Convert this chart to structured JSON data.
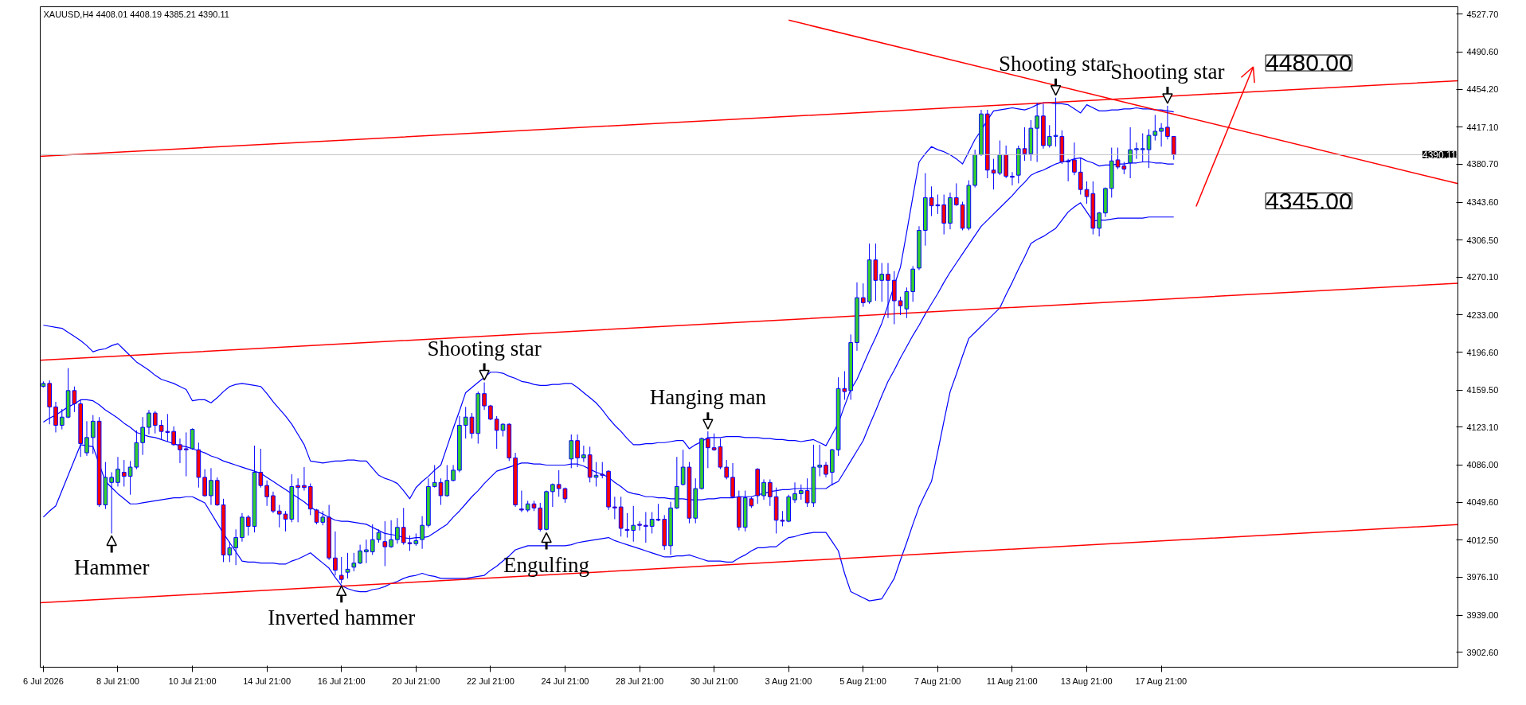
{
  "chart_data": {
    "type": "candlestick",
    "title": "XAUUSD,H4  4408.01 4408.19 4385.21 4390.11",
    "categories": [
      "6 Jul 2026",
      null,
      null,
      null,
      null,
      null,
      null,
      null,
      null,
      null,
      null,
      null,
      "8 Jul 21:00",
      null,
      null,
      null,
      null,
      null,
      null,
      null,
      null,
      null,
      null,
      null,
      "10 Jul 21:00",
      null,
      null,
      null,
      null,
      null,
      null,
      null,
      null,
      null,
      null,
      null,
      "14 Jul 21:00",
      null,
      null,
      null,
      null,
      null,
      null,
      null,
      null,
      null,
      null,
      null,
      "16 Jul 21:00",
      null,
      null,
      null,
      null,
      null,
      null,
      null,
      null,
      null,
      null,
      null,
      "20 Jul 21:00",
      null,
      null,
      null,
      null,
      null,
      null,
      null,
      null,
      null,
      null,
      null,
      "22 Jul 21:00",
      null,
      null,
      null,
      null,
      null,
      null,
      null,
      null,
      null,
      null,
      null,
      "24 Jul 21:00",
      null,
      null,
      null,
      null,
      null,
      null,
      null,
      null,
      null,
      null,
      null,
      "28 Jul 21:00",
      null,
      null,
      null,
      null,
      null,
      null,
      null,
      null,
      null,
      null,
      null,
      "30 Jul 21:00",
      null,
      null,
      null,
      null,
      null,
      null,
      null,
      null,
      null,
      null,
      null,
      "3 Aug 21:00",
      null,
      null,
      null,
      null,
      null,
      null,
      null,
      null,
      null,
      null,
      null,
      "5 Aug 21:00",
      null,
      null,
      null,
      null,
      null,
      null,
      null,
      null,
      null,
      null,
      null,
      "7 Aug 21:00",
      null,
      null,
      null,
      null,
      null,
      null,
      null,
      null,
      null,
      null,
      null,
      "11 Aug 21:00",
      null,
      null,
      null,
      null,
      null,
      null,
      null,
      null,
      null,
      null,
      null,
      "13 Aug 21:00",
      null,
      null,
      null,
      null,
      null,
      null,
      null,
      null,
      null,
      null,
      null,
      "17 Aug 21:00",
      null,
      null
    ],
    "ohlc": [
      [
        4163,
        4168,
        4162,
        4166
      ],
      [
        4166,
        4169,
        4126,
        4143
      ],
      [
        4143,
        4148,
        4118,
        4125
      ],
      [
        4125,
        4141,
        4121,
        4133
      ],
      [
        4133,
        4181,
        4132,
        4159
      ],
      [
        4159,
        4163,
        4138,
        4146
      ],
      [
        4146,
        4150,
        4094,
        4107
      ],
      [
        4098,
        4129,
        4095,
        4113
      ],
      [
        4113,
        4135,
        4097,
        4129
      ],
      [
        4129,
        4133,
        4045,
        4047
      ],
      [
        4047,
        4089,
        4043,
        4074
      ],
      [
        4069,
        4079,
        4019,
        4074
      ],
      [
        4069,
        4094,
        4065,
        4082
      ],
      [
        4079,
        4091,
        4065,
        4075
      ],
      [
        4075,
        4090,
        4057,
        4084
      ],
      [
        4084,
        4120,
        4082,
        4108
      ],
      [
        4108,
        4133,
        4096,
        4123
      ],
      [
        4123,
        4140,
        4116,
        4137
      ],
      [
        4137,
        4139,
        4117,
        4125
      ],
      [
        4125,
        4130,
        4111,
        4119
      ],
      [
        4119,
        4136,
        4109,
        4118
      ],
      [
        4119,
        4124,
        4105,
        4106
      ],
      [
        4106,
        4112,
        4088,
        4101
      ],
      [
        4102,
        4118,
        4075,
        4101
      ],
      [
        4102,
        4122,
        4101,
        4121
      ],
      [
        4101,
        4108,
        4064,
        4074
      ],
      [
        4074,
        4082,
        4055,
        4056
      ],
      [
        4056,
        4083,
        4047,
        4071
      ],
      [
        4071,
        4074,
        4046,
        4047
      ],
      [
        4047,
        4053,
        3991,
        3998
      ],
      [
        3998,
        4011,
        3991,
        4005
      ],
      [
        4005,
        4023,
        3988,
        4015
      ],
      [
        4015,
        4039,
        4011,
        4035
      ],
      [
        4035,
        4037,
        4017,
        4026
      ],
      [
        4026,
        4105,
        4020,
        4079
      ],
      [
        4079,
        4102,
        4064,
        4066
      ],
      [
        4066,
        4071,
        4046,
        4055
      ],
      [
        4056,
        4060,
        4039,
        4041
      ],
      [
        4041,
        4047,
        4025,
        4038
      ],
      [
        4038,
        4041,
        4021,
        4033
      ],
      [
        4033,
        4077,
        4030,
        4065
      ],
      [
        4066,
        4073,
        4030,
        4064
      ],
      [
        4066,
        4084,
        4061,
        4064
      ],
      [
        4065,
        4068,
        4037,
        4043
      ],
      [
        4042,
        4043,
        4028,
        4030
      ],
      [
        4030,
        4041,
        4027,
        4035
      ],
      [
        4035,
        4047,
        3993,
        3995
      ],
      [
        3995,
        4021,
        3978,
        3983
      ],
      [
        3978,
        3996,
        3970,
        3974
      ],
      [
        3981,
        4000,
        3975,
        3984
      ],
      [
        3986,
        4000,
        3982,
        3990
      ],
      [
        3990,
        4008,
        3989,
        4002
      ],
      [
        4001,
        4013,
        3990,
        4003
      ],
      [
        4001,
        4028,
        3998,
        4013
      ],
      [
        4013,
        4023,
        4010,
        4020
      ],
      [
        4011,
        4031,
        3987,
        4006
      ],
      [
        4006,
        4032,
        4005,
        4013
      ],
      [
        4013,
        4034,
        4009,
        4025
      ],
      [
        4025,
        4044,
        4008,
        4010
      ],
      [
        4010,
        4017,
        4002,
        4009
      ],
      [
        4009,
        4019,
        4007,
        4012
      ],
      [
        4013,
        4036,
        4004,
        4027
      ],
      [
        4027,
        4073,
        4025,
        4065
      ],
      [
        4065,
        4086,
        4064,
        4069
      ],
      [
        4069,
        4073,
        4047,
        4056
      ],
      [
        4056,
        4086,
        4055,
        4071
      ],
      [
        4071,
        4086,
        4070,
        4081
      ],
      [
        4081,
        4134,
        4079,
        4125
      ],
      [
        4125,
        4143,
        4112,
        4133
      ],
      [
        4133,
        4137,
        4112,
        4117
      ],
      [
        4117,
        4158,
        4107,
        4156
      ],
      [
        4156,
        4167,
        4140,
        4144
      ],
      [
        4144,
        4145,
        4130,
        4131
      ],
      [
        4131,
        4134,
        4102,
        4120
      ],
      [
        4120,
        4127,
        4114,
        4126
      ],
      [
        4126,
        4127,
        4090,
        4093
      ],
      [
        4093,
        4098,
        4045,
        4047
      ],
      [
        4043,
        4061,
        4040,
        4042
      ],
      [
        4042,
        4051,
        4040,
        4048
      ],
      [
        4048,
        4051,
        4041,
        4044
      ],
      [
        4044,
        4049,
        4021,
        4023
      ],
      [
        4023,
        4061,
        4022,
        4060
      ],
      [
        4060,
        4068,
        4045,
        4067
      ],
      [
        4067,
        4081,
        4055,
        4063
      ],
      [
        4063,
        4064,
        4049,
        4053
      ],
      [
        4092,
        4116,
        4083,
        4110
      ],
      [
        4110,
        4116,
        4084,
        4093
      ],
      [
        4093,
        4105,
        4089,
        4096
      ],
      [
        4096,
        4104,
        4069,
        4074
      ],
      [
        4074,
        4089,
        4065,
        4076
      ],
      [
        4077,
        4089,
        4073,
        4076
      ],
      [
        4080,
        4081,
        4042,
        4045
      ],
      [
        4045,
        4055,
        4033,
        4044
      ],
      [
        4045,
        4055,
        4016,
        4024
      ],
      [
        4023,
        4039,
        4015,
        4022
      ],
      [
        4022,
        4046,
        4011,
        4027
      ],
      [
        4028,
        4031,
        4022,
        4027
      ],
      [
        4027,
        4040,
        4010,
        4026
      ],
      [
        4026,
        4040,
        4019,
        4033
      ],
      [
        4033,
        4048,
        4031,
        4032
      ],
      [
        4033,
        4037,
        4003,
        4007
      ],
      [
        4007,
        4050,
        3998,
        4044
      ],
      [
        4044,
        4094,
        4043,
        4065
      ],
      [
        4067,
        4101,
        4066,
        4084
      ],
      [
        4084,
        4089,
        4029,
        4034
      ],
      [
        4034,
        4073,
        4029,
        4063
      ],
      [
        4063,
        4113,
        4062,
        4112
      ],
      [
        4112,
        4119,
        4083,
        4103
      ],
      [
        4103,
        4117,
        4100,
        4101
      ],
      [
        4104,
        4112,
        4082,
        4084
      ],
      [
        4084,
        4091,
        4072,
        4074
      ],
      [
        4074,
        4088,
        4054,
        4055
      ],
      [
        4055,
        4061,
        4022,
        4025
      ],
      [
        4025,
        4061,
        4021,
        4054
      ],
      [
        4053,
        4055,
        4044,
        4046
      ],
      [
        4082,
        4083,
        4048,
        4056
      ],
      [
        4056,
        4072,
        4052,
        4069
      ],
      [
        4069,
        4072,
        4046,
        4055
      ],
      [
        4055,
        4064,
        4019,
        4032
      ],
      [
        4032,
        4041,
        4026,
        4031
      ],
      [
        4031,
        4057,
        4030,
        4055
      ],
      [
        4052,
        4069,
        4049,
        4058
      ],
      [
        4058,
        4067,
        4052,
        4061
      ],
      [
        4061,
        4073,
        4045,
        4049
      ],
      [
        4049,
        4106,
        4045,
        4084
      ],
      [
        4084,
        4106,
        4075,
        4086
      ],
      [
        4086,
        4089,
        4074,
        4077
      ],
      [
        4079,
        4102,
        4066,
        4101
      ],
      [
        4101,
        4172,
        4095,
        4161
      ],
      [
        4161,
        4178,
        4150,
        4158
      ],
      [
        4159,
        4214,
        4150,
        4206
      ],
      [
        4206,
        4265,
        4198,
        4250
      ],
      [
        4250,
        4264,
        4241,
        4245
      ],
      [
        4246,
        4303,
        4244,
        4287
      ],
      [
        4287,
        4303,
        4247,
        4267
      ],
      [
        4267,
        4284,
        4246,
        4273
      ],
      [
        4273,
        4284,
        4230,
        4267
      ],
      [
        4267,
        4276,
        4224,
        4247
      ],
      [
        4247,
        4251,
        4233,
        4242
      ],
      [
        4239,
        4260,
        4230,
        4256
      ],
      [
        4256,
        4281,
        4246,
        4278
      ],
      [
        4279,
        4320,
        4277,
        4316
      ],
      [
        4316,
        4372,
        4301,
        4348
      ],
      [
        4348,
        4359,
        4330,
        4340
      ],
      [
        4341,
        4351,
        4332,
        4340
      ],
      [
        4341,
        4351,
        4312,
        4323
      ],
      [
        4323,
        4353,
        4317,
        4348
      ],
      [
        4348,
        4362,
        4340,
        4341
      ],
      [
        4341,
        4344,
        4316,
        4318
      ],
      [
        4318,
        4365,
        4316,
        4360
      ],
      [
        4360,
        4395,
        4358,
        4390
      ],
      [
        4390,
        4434,
        4389,
        4430
      ],
      [
        4430,
        4434,
        4367,
        4375
      ],
      [
        4375,
        4386,
        4356,
        4372
      ],
      [
        4372,
        4404,
        4370,
        4390
      ],
      [
        4390,
        4399,
        4367,
        4369
      ],
      [
        4369,
        4373,
        4360,
        4368
      ],
      [
        4370,
        4399,
        4362,
        4396
      ],
      [
        4396,
        4417,
        4384,
        4391
      ],
      [
        4391,
        4424,
        4384,
        4416
      ],
      [
        4416,
        4441,
        4383,
        4428
      ],
      [
        4428,
        4440,
        4396,
        4399
      ],
      [
        4399,
        4419,
        4397,
        4408
      ],
      [
        4408,
        4446,
        4398,
        4409
      ],
      [
        4408,
        4414,
        4381,
        4383
      ],
      [
        4383,
        4386,
        4364,
        4384
      ],
      [
        4385,
        4402,
        4370,
        4373
      ],
      [
        4373,
        4387,
        4351,
        4356
      ],
      [
        4356,
        4364,
        4342,
        4349
      ],
      [
        4352,
        4364,
        4312,
        4318
      ],
      [
        4318,
        4334,
        4310,
        4333
      ],
      [
        4333,
        4358,
        4329,
        4357
      ],
      [
        4357,
        4397,
        4348,
        4384
      ],
      [
        4385,
        4397,
        4376,
        4378
      ],
      [
        4379,
        4383,
        4371,
        4376
      ],
      [
        4382,
        4417,
        4367,
        4395
      ],
      [
        4395,
        4402,
        4386,
        4396
      ],
      [
        4395,
        4411,
        4383,
        4396
      ],
      [
        4395,
        4415,
        4377,
        4409
      ],
      [
        4409,
        4429,
        4404,
        4413
      ],
      [
        4413,
        4421,
        4398,
        4416
      ],
      [
        4417,
        4438,
        4405,
        4408
      ],
      [
        4408.01,
        4408.19,
        4385.21,
        4390.11
      ]
    ],
    "colors": [
      "#32cd32",
      "#ff0000",
      "#ff0000",
      "#32cd32",
      "#32cd32",
      "#ff0000",
      "#ff0000",
      "#32cd32",
      "#32cd32",
      "#ff0000",
      "#32cd32",
      "#32cd32",
      "#32cd32",
      "#ff0000",
      "#32cd32",
      "#32cd32",
      "#32cd32",
      "#32cd32",
      "#ff0000",
      "#ff0000",
      "#ff0000",
      "#ff0000",
      "#ff0000",
      "#ff0000",
      "#32cd32",
      "#ff0000",
      "#ff0000",
      "#32cd32",
      "#ff0000",
      "#ff0000",
      "#32cd32",
      "#32cd32",
      "#32cd32",
      "#ff0000",
      "#32cd32",
      "#ff0000",
      "#ff0000",
      "#ff0000",
      "#ff0000",
      "#ff0000",
      "#32cd32",
      "#ff0000",
      "#ff0000",
      "#ff0000",
      "#ff0000",
      "#32cd32",
      "#ff0000",
      "#ff0000",
      "#ff0000",
      "#32cd32",
      "#32cd32",
      "#32cd32",
      "#32cd32",
      "#32cd32",
      "#32cd32",
      "#ff0000",
      "#32cd32",
      "#32cd32",
      "#ff0000",
      "#ff0000",
      "#32cd32",
      "#32cd32",
      "#32cd32",
      "#32cd32",
      "#ff0000",
      "#32cd32",
      "#32cd32",
      "#32cd32",
      "#32cd32",
      "#ff0000",
      "#32cd32",
      "#ff0000",
      "#ff0000",
      "#ff0000",
      "#32cd32",
      "#ff0000",
      "#ff0000",
      "#ff0000",
      "#32cd32",
      "#ff0000",
      "#ff0000",
      "#32cd32",
      "#32cd32",
      "#ff0000",
      "#ff0000",
      "#32cd32",
      "#ff0000",
      "#32cd32",
      "#ff0000",
      "#32cd32",
      "#ff0000",
      "#ff0000",
      "#ff0000",
      "#ff0000",
      "#ff0000",
      "#32cd32",
      "#ff0000",
      "#ff0000",
      "#32cd32",
      "#ff0000",
      "#ff0000",
      "#32cd32",
      "#32cd32",
      "#32cd32",
      "#ff0000",
      "#32cd32",
      "#32cd32",
      "#ff0000",
      "#ff0000",
      "#ff0000",
      "#ff0000",
      "#ff0000",
      "#ff0000",
      "#32cd32",
      "#ff0000",
      "#ff0000",
      "#32cd32",
      "#ff0000",
      "#ff0000",
      "#ff0000",
      "#32cd32",
      "#32cd32",
      "#32cd32",
      "#ff0000",
      "#32cd32",
      "#32cd32",
      "#ff0000",
      "#32cd32",
      "#32cd32",
      "#ff0000",
      "#32cd32",
      "#32cd32",
      "#ff0000",
      "#32cd32",
      "#ff0000",
      "#32cd32",
      "#ff0000",
      "#ff0000",
      "#ff0000",
      "#32cd32",
      "#32cd32",
      "#32cd32",
      "#32cd32",
      "#ff0000",
      "#ff0000",
      "#ff0000",
      "#32cd32",
      "#ff0000",
      "#ff0000",
      "#32cd32",
      "#32cd32",
      "#32cd32",
      "#ff0000",
      "#ff0000",
      "#32cd32",
      "#ff0000",
      "#ff0000",
      "#32cd32",
      "#ff0000",
      "#32cd32",
      "#32cd32",
      "#ff0000",
      "#32cd32",
      "#32cd32",
      "#ff0000",
      "#32cd32",
      "#ff0000",
      "#ff0000",
      "#ff0000",
      "#ff0000",
      "#32cd32",
      "#32cd32",
      "#32cd32",
      "#ff0000",
      "#ff0000",
      "#32cd32",
      "#32cd32",
      "#32cd32",
      "#32cd32",
      "#32cd32",
      "#32cd32",
      "#ff0000",
      "#ff0000"
    ],
    "series": [
      {
        "type": "line",
        "color": "#0000ff",
        "values": [
          4223,
          4222,
          4221,
          4220,
          4216,
          4212,
          4208,
          4203,
          4197,
          4199,
          4200,
          4203,
          4205,
          4199,
          4193,
          4187,
          4183,
          4179,
          4174,
          4170,
          4168,
          4166,
          4163,
          4160,
          4149,
          4150,
          4150,
          4147,
          4152,
          4158,
          4163,
          4165,
          4166,
          4165,
          4164,
          4163,
          4156,
          4148,
          4141,
          4134,
          4126,
          4116,
          4106,
          4090,
          4089,
          4088,
          4089,
          4090,
          4090,
          4091,
          4091,
          4090,
          4090,
          4083,
          4076,
          4073,
          4071,
          4068,
          4061,
          4053,
          4064,
          4070,
          4075,
          4081,
          4086,
          4104,
          4122,
          4139,
          4157,
          4162,
          4167,
          4172,
          4177,
          4177,
          4176,
          4173,
          4171,
          4168,
          4167,
          4165,
          4164,
          4164,
          4165,
          4165,
          4166,
          4166,
          4162,
          4157,
          4152,
          4147,
          4140,
          4132,
          4125,
          4119,
          4112,
          4106,
          4106,
          4107,
          4107,
          4108,
          4108,
          4109,
          4110,
          4110,
          4102,
          4106,
          4109,
          4113,
          4113,
          4113,
          4114,
          4114,
          4114,
          4113,
          4113,
          4113,
          4112,
          4112,
          4111,
          4111,
          4110,
          4110,
          4109,
          4110,
          4111,
          4108,
          4105,
          4116,
          4127,
          4144,
          4160,
          4170,
          4184,
          4198,
          4211,
          4225,
          4243,
          4262,
          4280,
          4314,
          4349,
          4383,
          4391,
          4398,
          4395,
          4393,
          4390,
          4386,
          4381,
          4393,
          4405,
          4414,
          4424,
          4433,
          4434,
          4435,
          4436,
          4435,
          4434,
          4436,
          4439,
          4441,
          4441,
          4440,
          4440,
          4439,
          4435,
          4431,
          4439,
          4436,
          4433,
          4433,
          4434,
          4434,
          4435,
          4435,
          4436,
          4435,
          4435,
          4434,
          4434,
          4433,
          4432
        ]
      },
      {
        "type": "line",
        "color": "#0000ff",
        "values": [
          4128,
          4132,
          4135,
          4139,
          4143,
          4146,
          4150,
          4150,
          4149,
          4145,
          4140,
          4136,
          4132,
          4127,
          4123,
          4118,
          4116,
          4114,
          4113,
          4111,
          4109,
          4107,
          4105,
          4104,
          4102,
          4100,
          4098,
          4095,
          4093,
          4090,
          4088,
          4086,
          4084,
          4082,
          4080,
          4078,
          4074,
          4070,
          4066,
          4062,
          4058,
          4054,
          4050,
          4045,
          4041,
          4038,
          4035,
          4032,
          4031,
          4031,
          4030,
          4029,
          4028,
          4025,
          4022,
          4019,
          4018,
          4017,
          4015,
          4014,
          4015,
          4015,
          4016,
          4020,
          4024,
          4028,
          4035,
          4041,
          4048,
          4055,
          4061,
          4068,
          4074,
          4080,
          4082,
          4084,
          4086,
          4088,
          4088,
          4087,
          4087,
          4086,
          4086,
          4086,
          4086,
          4087,
          4087,
          4085,
          4082,
          4079,
          4077,
          4074,
          4069,
          4065,
          4060,
          4058,
          4057,
          4055,
          4055,
          4054,
          4054,
          4053,
          4053,
          4053,
          4052,
          4052,
          4052,
          4053,
          4053,
          4054,
          4054,
          4054,
          4055,
          4055,
          4055,
          4057,
          4058,
          4060,
          4061,
          4062,
          4062,
          4063,
          4063,
          4063,
          4063,
          4063,
          4063,
          4067,
          4070,
          4080,
          4090,
          4100,
          4110,
          4125,
          4139,
          4154,
          4168,
          4179,
          4191,
          4202,
          4213,
          4223,
          4234,
          4244,
          4254,
          4265,
          4275,
          4284,
          4293,
          4302,
          4311,
          4320,
          4326,
          4332,
          4338,
          4344,
          4350,
          4357,
          4363,
          4370,
          4373,
          4375,
          4378,
          4381,
          4383,
          4384,
          4386,
          4387,
          4384,
          4382,
          4379,
          4380,
          4380,
          4381,
          4381,
          4382,
          4382,
          4383,
          4383,
          4382,
          4382,
          4381,
          4381
        ]
      },
      {
        "type": "line",
        "color": "#0000ff",
        "values": [
          4035,
          4041,
          4046,
          4061,
          4076,
          4091,
          4106,
          4105,
          4104,
          4087,
          4070,
          4064,
          4058,
          4053,
          4048,
          4048,
          4049,
          4050,
          4051,
          4052,
          4053,
          4054,
          4054,
          4055,
          4055,
          4052,
          4049,
          4039,
          4029,
          4019,
          4010,
          4001,
          3992,
          3991,
          3991,
          3990,
          3990,
          3990,
          3989,
          3989,
          3992,
          3994,
          3997,
          4000,
          3995,
          3990,
          3985,
          3976,
          3968,
          3965,
          3963,
          3962,
          3962,
          3964,
          3965,
          3967,
          3970,
          3972,
          3975,
          3977,
          3978,
          3980,
          3978,
          3977,
          3975,
          3975,
          3975,
          3975,
          3975,
          3976,
          3977,
          3978,
          3983,
          3987,
          3992,
          3997,
          4003,
          4005,
          4007,
          4007,
          4007,
          4007,
          4007,
          4007,
          4007,
          4008,
          4010,
          4011,
          4012,
          4013,
          4014,
          4015,
          4012,
          4010,
          4008,
          4006,
          4004,
          4002,
          4000,
          3998,
          3996,
          3996,
          3997,
          3997,
          3998,
          3996,
          3994,
          3992,
          3992,
          3992,
          3991,
          3991,
          3995,
          3998,
          4002,
          4005,
          4005,
          4006,
          4006,
          4011,
          4015,
          4016,
          4018,
          4019,
          4020,
          4020,
          4020,
          4011,
          4002,
          3980,
          3962,
          3959,
          3956,
          3953,
          3954,
          3955,
          3965,
          3975,
          3993,
          4010,
          4028,
          4045,
          4058,
          4070,
          4099,
          4129,
          4158,
          4175,
          4193,
          4210,
          4216,
          4222,
          4228,
          4234,
          4240,
          4253,
          4265,
          4278,
          4290,
          4303,
          4307,
          4310,
          4314,
          4318,
          4326,
          4334,
          4339,
          4343,
          4334,
          4325,
          4326,
          4326,
          4327,
          4328,
          4328,
          4328,
          4328,
          4328,
          4329,
          4329,
          4329,
          4329,
          4329
        ]
      },
      {
        "type": "line",
        "color": "#ff0000",
        "x": [
          "6 Jul 2026",
          "17 Aug 21:00"
        ],
        "values": [
          4388.7,
          4447.0
        ]
      },
      {
        "type": "line",
        "color": "#ff0000",
        "x": [
          "6 Jul 2026",
          "17 Aug 21:00"
        ],
        "values": [
          4188.8,
          4248.4
        ]
      },
      {
        "type": "line",
        "color": "#ff0000",
        "x": [
          "6 Jul 2026",
          "17 Aug 21:00"
        ],
        "values": [
          3951.3,
          4011.7
        ]
      },
      {
        "type": "line",
        "color": "#ff0000",
        "x": [
          "3 Aug 21:00",
          "17 Aug 21:00"
        ],
        "values": [
          4521.9,
          4432.7
        ]
      }
    ],
    "ylim": [
      3888,
      4535
    ],
    "yticks": [
      {
        "value": 3902.6,
        "label": "3902.60"
      },
      {
        "value": 3939,
        "label": "3939.00"
      },
      {
        "value": 3976.1,
        "label": "3976.10"
      },
      {
        "value": 4012.5,
        "label": "4012.50"
      },
      {
        "value": 4049.6,
        "label": "4049.60"
      },
      {
        "value": 4086,
        "label": "4086.00"
      },
      {
        "value": 4123.1,
        "label": "4123.10"
      },
      {
        "value": 4159.5,
        "label": "4159.50"
      },
      {
        "value": 4196.6,
        "label": "4196.60"
      },
      {
        "value": 4233,
        "label": "4233.00"
      },
      {
        "value": 4270.1,
        "label": "4270.10"
      },
      {
        "value": 4306.5,
        "label": "4306.50"
      },
      {
        "value": 4343.6,
        "label": "4343.60"
      },
      {
        "value": 4380.7,
        "label": "4380.70"
      },
      {
        "value": 4417.1,
        "label": "4417.10"
      },
      {
        "value": 4454.2,
        "label": "4454.20"
      },
      {
        "value": 4490.6,
        "label": "4490.60"
      },
      {
        "value": 4527.7,
        "label": "4527.70"
      }
    ],
    "ref_lines": [
      {
        "axis": "y",
        "value": 4390.11,
        "label": "4390.11",
        "color": "#c0c0c0"
      }
    ],
    "annotations": [
      {
        "text": "Hammer",
        "y": 4019
      },
      {
        "text": "Inverted hammer",
        "y": 3970
      },
      {
        "text": "Engulfing",
        "y": 4022
      },
      {
        "text": "Shooting star",
        "y": 4167
      },
      {
        "text": "Hanging man",
        "y": 4119
      },
      {
        "text": "Shooting star",
        "y": 4446
      },
      {
        "text": "Shooting star",
        "y": 4438
      },
      "4480.00",
      "4345.00"
    ],
    "grid": false
  }
}
